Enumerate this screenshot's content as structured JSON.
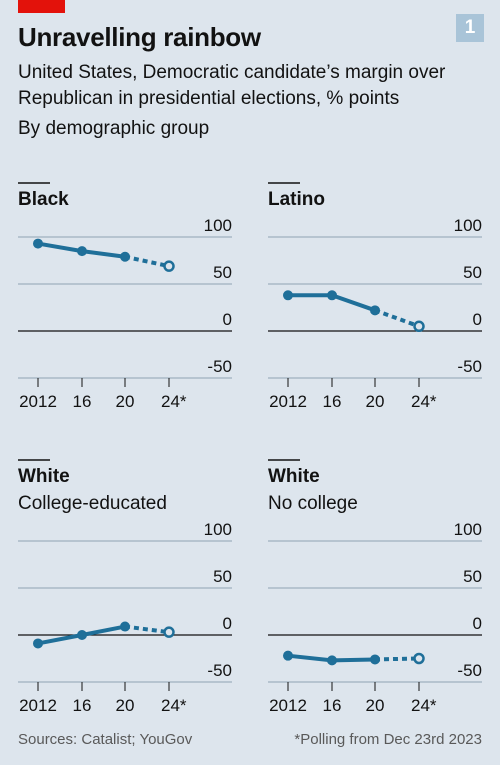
{
  "header": {
    "title": "Unravelling rainbow",
    "subtitle": "United States, Democratic candidate’s margin over Republican in presidential elections, % points",
    "subtitle2": "By demographic group",
    "chart_number": "1"
  },
  "footer": {
    "source": "Sources: Catalist; YouGov",
    "note": "*Polling from Dec 23rd 2023"
  },
  "colors": {
    "line": "#1f6f99",
    "background": "#dde5ed",
    "brand_red": "#e3120b"
  },
  "chart_data": [
    {
      "type": "line",
      "title": "Black",
      "subtitle": "",
      "x": [
        "2012",
        "16",
        "20",
        "24*"
      ],
      "values": [
        93,
        85,
        79,
        69
      ],
      "projected_from_index": 2,
      "yticks": [
        "100",
        "50",
        "0",
        "-50"
      ],
      "ylim": [
        -50,
        100
      ]
    },
    {
      "type": "line",
      "title": "Latino",
      "subtitle": "",
      "x": [
        "2012",
        "16",
        "20",
        "24*"
      ],
      "values": [
        38,
        38,
        22,
        5
      ],
      "projected_from_index": 2,
      "yticks": [
        "100",
        "50",
        "0",
        "-50"
      ],
      "ylim": [
        -50,
        100
      ]
    },
    {
      "type": "line",
      "title": "White",
      "subtitle": "College-educated",
      "x": [
        "2012",
        "16",
        "20",
        "24*"
      ],
      "values": [
        -9,
        0,
        9,
        3
      ],
      "projected_from_index": 2,
      "yticks": [
        "100",
        "50",
        "0",
        "-50"
      ],
      "ylim": [
        -50,
        100
      ]
    },
    {
      "type": "line",
      "title": "White",
      "subtitle": "No college",
      "x": [
        "2012",
        "16",
        "20",
        "24*"
      ],
      "values": [
        -22,
        -27,
        -26,
        -25
      ],
      "projected_from_index": 2,
      "yticks": [
        "100",
        "50",
        "0",
        "-50"
      ],
      "ylim": [
        -50,
        100
      ]
    }
  ]
}
